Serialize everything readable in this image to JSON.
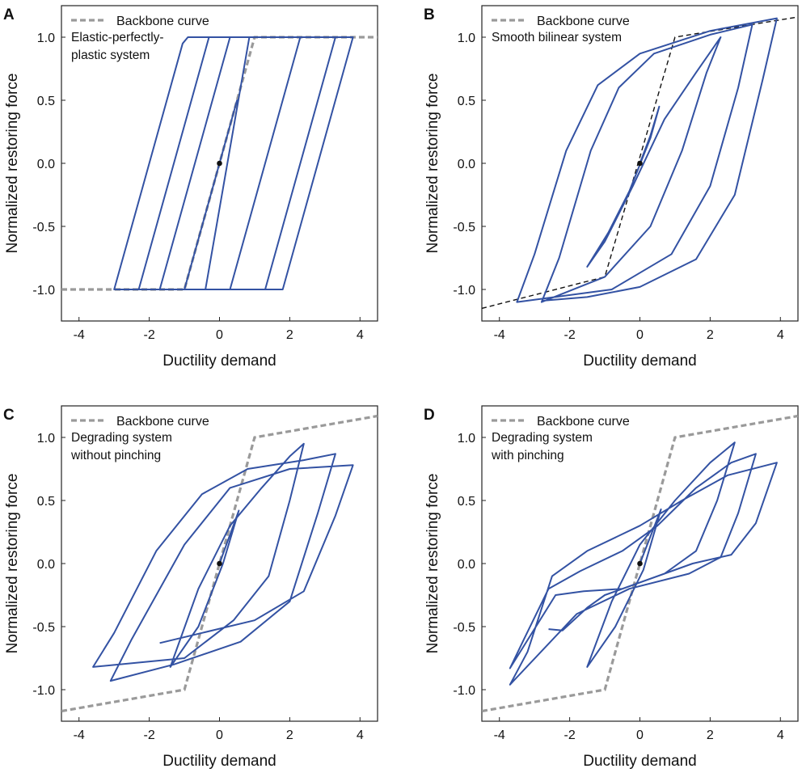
{
  "figure": {
    "x_tick_labels": [
      "-4",
      "-2",
      "0",
      "2",
      "4"
    ],
    "y_tick_labels": [
      "-1.0",
      "-0.5",
      "0.0",
      "0.5",
      "1.0"
    ]
  },
  "chart_data": [
    {
      "panel": "A",
      "type": "line",
      "xlabel": "Ductility demand",
      "ylabel": "Normalized restoring force",
      "xlim": [
        -4.5,
        4.5
      ],
      "ylim": [
        -1.25,
        1.25
      ],
      "legend": "Backbone curve",
      "legend_position": "top-left",
      "annotation": [
        "Elastic-perfectly-",
        "plastic system"
      ],
      "backbone_style": "gray-dashed",
      "backbone": [
        [
          -4.5,
          -1.0
        ],
        [
          -1.0,
          -1.0
        ],
        [
          1.0,
          1.0
        ],
        [
          4.5,
          1.0
        ]
      ],
      "hysteresis": [
        [
          0,
          0
        ],
        [
          0.5,
          0.5
        ],
        [
          -0.85,
          -0.85
        ],
        [
          -1.0,
          -1.0
        ],
        [
          -1.7,
          -1.0
        ],
        [
          0.3,
          1.0
        ],
        [
          0.85,
          1.0
        ],
        [
          -0.4,
          -1.0
        ],
        [
          -3.0,
          -1.0
        ],
        [
          -1.05,
          0.95
        ],
        [
          -0.9,
          1.0
        ],
        [
          3.8,
          1.0
        ],
        [
          1.8,
          -1.0
        ],
        [
          -2.3,
          -1.0
        ],
        [
          -0.3,
          1.0
        ],
        [
          3.3,
          1.0
        ],
        [
          1.3,
          -1.0
        ],
        [
          0.3,
          -1.0
        ],
        [
          2.3,
          1.0
        ],
        [
          3.8,
          1.0
        ]
      ],
      "origin_marker": [
        0,
        0
      ]
    },
    {
      "panel": "B",
      "type": "line",
      "xlabel": "Ductility demand",
      "ylabel": "Normalized restoring force",
      "xlim": [
        -4.5,
        4.5
      ],
      "ylim": [
        -1.25,
        1.25
      ],
      "legend": "Backbone curve",
      "legend_position": "top-left",
      "annotation": [
        "Smooth bilinear system"
      ],
      "backbone_style": "black-dashed",
      "backbone": [
        [
          -4.5,
          -1.15
        ],
        [
          -1.0,
          -0.9
        ],
        [
          1.0,
          1.0
        ],
        [
          4.5,
          1.16
        ]
      ],
      "hysteresis": [
        [
          0,
          0
        ],
        [
          0.3,
          0.22
        ],
        [
          0.55,
          0.45
        ],
        [
          0.3,
          0.2
        ],
        [
          -0.3,
          -0.22
        ],
        [
          -0.9,
          -0.55
        ],
        [
          -1.5,
          -0.82
        ],
        [
          -1.0,
          -0.62
        ],
        [
          -0.2,
          -0.18
        ],
        [
          0.7,
          0.35
        ],
        [
          1.6,
          0.72
        ],
        [
          2.3,
          1.0
        ],
        [
          1.9,
          0.72
        ],
        [
          1.2,
          0.1
        ],
        [
          0.3,
          -0.5
        ],
        [
          -1.0,
          -0.9
        ],
        [
          -2.8,
          -1.1
        ],
        [
          -2.3,
          -0.75
        ],
        [
          -1.4,
          0.1
        ],
        [
          -0.6,
          0.6
        ],
        [
          0.4,
          0.87
        ],
        [
          2.0,
          1.02
        ],
        [
          3.2,
          1.1
        ],
        [
          2.8,
          0.6
        ],
        [
          2.0,
          -0.18
        ],
        [
          0.9,
          -0.72
        ],
        [
          -0.8,
          -1.0
        ],
        [
          -3.5,
          -1.1
        ],
        [
          -3.0,
          -0.72
        ],
        [
          -2.1,
          0.1
        ],
        [
          -1.2,
          0.62
        ],
        [
          0.0,
          0.87
        ],
        [
          2.0,
          1.05
        ],
        [
          3.9,
          1.15
        ],
        [
          3.5,
          0.67
        ],
        [
          2.7,
          -0.25
        ],
        [
          1.6,
          -0.76
        ],
        [
          0.0,
          -0.98
        ],
        [
          -1.5,
          -1.06
        ],
        [
          -2.8,
          -1.09
        ]
      ],
      "origin_marker": [
        0,
        0
      ]
    },
    {
      "panel": "C",
      "type": "line",
      "xlabel": "Ductility demand",
      "ylabel": "Normalized restoring force",
      "xlim": [
        -4.5,
        4.5
      ],
      "ylim": [
        -1.25,
        1.25
      ],
      "legend": "Backbone curve",
      "legend_position": "top-left",
      "annotation": [
        "Degrading system",
        "without pinching"
      ],
      "backbone_style": "gray-dashed",
      "backbone": [
        [
          -4.5,
          -1.17
        ],
        [
          -1.0,
          -1.0
        ],
        [
          1.0,
          1.0
        ],
        [
          4.5,
          1.17
        ]
      ],
      "hysteresis": [
        [
          0,
          0
        ],
        [
          0.55,
          0.42
        ],
        [
          0.1,
          0.0
        ],
        [
          -0.6,
          -0.5
        ],
        [
          -1.4,
          -0.82
        ],
        [
          -0.6,
          -0.2
        ],
        [
          0.3,
          0.3
        ],
        [
          1.2,
          0.6
        ],
        [
          2.0,
          0.85
        ],
        [
          2.4,
          0.95
        ],
        [
          2.0,
          0.5
        ],
        [
          1.4,
          -0.1
        ],
        [
          0.4,
          -0.45
        ],
        [
          -1.0,
          -0.75
        ],
        [
          -3.6,
          -0.82
        ],
        [
          -3.0,
          -0.55
        ],
        [
          -1.8,
          0.1
        ],
        [
          -0.5,
          0.55
        ],
        [
          0.8,
          0.75
        ],
        [
          2.4,
          0.82
        ],
        [
          3.3,
          0.87
        ],
        [
          2.8,
          0.4
        ],
        [
          2.0,
          -0.3
        ],
        [
          0.6,
          -0.62
        ],
        [
          -1.3,
          -0.8
        ],
        [
          -3.1,
          -0.93
        ],
        [
          -2.5,
          -0.6
        ],
        [
          -1.0,
          0.15
        ],
        [
          0.3,
          0.6
        ],
        [
          2.0,
          0.75
        ],
        [
          3.8,
          0.78
        ],
        [
          3.3,
          0.38
        ],
        [
          2.4,
          -0.22
        ],
        [
          1.0,
          -0.45
        ],
        [
          -0.5,
          -0.55
        ],
        [
          -1.7,
          -0.63
        ]
      ],
      "origin_marker": [
        0,
        0
      ]
    },
    {
      "panel": "D",
      "type": "line",
      "xlabel": "Ductility demand",
      "ylabel": "Normalized restoring force",
      "xlim": [
        -4.5,
        4.5
      ],
      "ylim": [
        -1.25,
        1.25
      ],
      "legend": "Backbone curve",
      "legend_position": "top-left",
      "annotation": [
        "Degrading system",
        "with pinching"
      ],
      "backbone_style": "gray-dashed",
      "backbone": [
        [
          -4.5,
          -1.17
        ],
        [
          -1.0,
          -1.0
        ],
        [
          1.0,
          1.0
        ],
        [
          4.5,
          1.17
        ]
      ],
      "hysteresis": [
        [
          0,
          0
        ],
        [
          0.6,
          0.43
        ],
        [
          0.1,
          -0.05
        ],
        [
          -0.7,
          -0.5
        ],
        [
          -1.5,
          -0.82
        ],
        [
          -0.8,
          -0.3
        ],
        [
          0.0,
          0.15
        ],
        [
          1.0,
          0.5
        ],
        [
          2.0,
          0.8
        ],
        [
          2.7,
          0.96
        ],
        [
          2.2,
          0.5
        ],
        [
          1.6,
          0.1
        ],
        [
          0.7,
          -0.08
        ],
        [
          -0.5,
          -0.2
        ],
        [
          -1.6,
          -0.22
        ],
        [
          -2.4,
          -0.25
        ],
        [
          -3.7,
          -0.83
        ],
        [
          -3.3,
          -0.6
        ],
        [
          -2.6,
          -0.2
        ],
        [
          -1.7,
          -0.06
        ],
        [
          -0.5,
          0.1
        ],
        [
          0.5,
          0.3
        ],
        [
          1.6,
          0.6
        ],
        [
          2.6,
          0.8
        ],
        [
          3.3,
          0.87
        ],
        [
          2.8,
          0.4
        ],
        [
          2.3,
          0.05
        ],
        [
          1.4,
          -0.08
        ],
        [
          -0.3,
          -0.2
        ],
        [
          -1.8,
          -0.4
        ],
        [
          -3.7,
          -0.96
        ],
        [
          -3.2,
          -0.7
        ],
        [
          -2.5,
          -0.1
        ],
        [
          -1.5,
          0.1
        ],
        [
          0.0,
          0.3
        ],
        [
          1.2,
          0.5
        ],
        [
          2.5,
          0.7
        ],
        [
          3.9,
          0.8
        ],
        [
          3.3,
          0.32
        ],
        [
          2.6,
          0.07
        ],
        [
          1.5,
          0.0
        ],
        [
          0.0,
          -0.15
        ],
        [
          -1.0,
          -0.25
        ],
        [
          -1.5,
          -0.35
        ],
        [
          -2.2,
          -0.53
        ],
        [
          -2.6,
          -0.52
        ]
      ],
      "origin_marker": [
        0,
        0
      ]
    }
  ]
}
